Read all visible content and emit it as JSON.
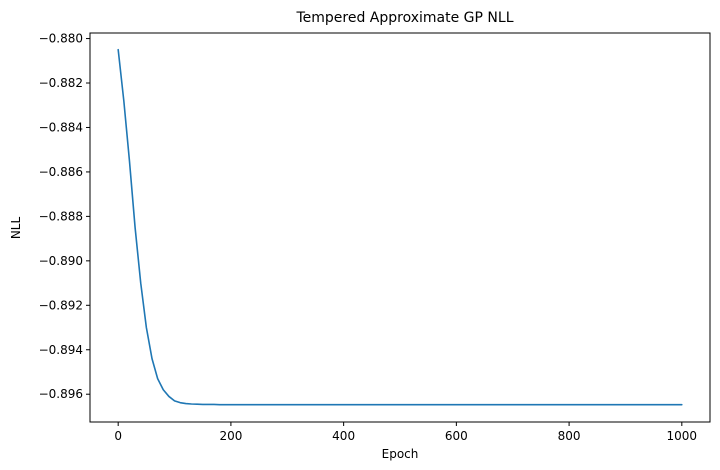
{
  "chart_data": {
    "type": "line",
    "title": "Tempered Approximate GP NLL",
    "xlabel": "Epoch",
    "ylabel": "NLL",
    "xlim": [
      -50,
      1050
    ],
    "ylim": [
      -0.89725,
      -0.87975
    ],
    "xticks": [
      0,
      200,
      400,
      600,
      800,
      1000
    ],
    "xtick_labels": [
      "0",
      "200",
      "400",
      "600",
      "800",
      "1000"
    ],
    "yticks": [
      -0.88,
      -0.882,
      -0.884,
      -0.886,
      -0.888,
      -0.89,
      -0.892,
      -0.894,
      -0.896
    ],
    "ytick_labels": [
      "−0.880",
      "−0.882",
      "−0.884",
      "−0.886",
      "−0.888",
      "−0.890",
      "−0.892",
      "−0.894",
      "−0.896"
    ],
    "grid": false,
    "series": [
      {
        "color": "#1f77b4",
        "x": [
          0,
          10,
          20,
          30,
          40,
          50,
          60,
          70,
          80,
          90,
          100,
          110,
          120,
          130,
          140,
          150,
          160,
          170,
          180,
          200,
          250,
          300,
          400,
          500,
          600,
          700,
          800,
          900,
          1000
        ],
        "y": [
          -0.8805,
          -0.8828,
          -0.8855,
          -0.8885,
          -0.891,
          -0.893,
          -0.8944,
          -0.8953,
          -0.8958,
          -0.8961,
          -0.8963,
          -0.89638,
          -0.89642,
          -0.89644,
          -0.89645,
          -0.89646,
          -0.89646,
          -0.89646,
          -0.89647,
          -0.89647,
          -0.89647,
          -0.89647,
          -0.89647,
          -0.89647,
          -0.89647,
          -0.89647,
          -0.89647,
          -0.89647,
          -0.89647
        ]
      }
    ]
  }
}
